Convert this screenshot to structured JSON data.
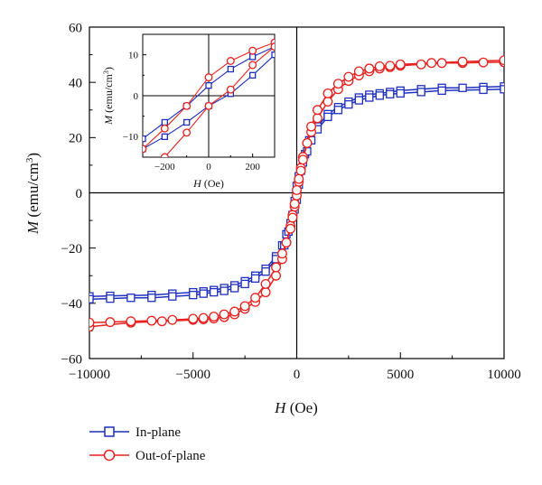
{
  "chart_data": [
    {
      "type": "line",
      "xlabel": "H (Oe)",
      "ylabel": "M (emu/cm3)",
      "xlim": [
        -10000,
        10000
      ],
      "ylim": [
        -60,
        60
      ],
      "xticks": [
        -10000,
        -5000,
        0,
        5000,
        10000
      ],
      "yticks": [
        -60,
        -40,
        -20,
        0,
        20,
        40,
        60
      ],
      "xtick_labels": [
        "−10000",
        "−5000",
        "0",
        "5000",
        "10000"
      ],
      "ytick_labels": [
        "−60",
        "−40",
        "−20",
        "0",
        "20",
        "40",
        "60"
      ],
      "legend": {
        "position": "bottom-left"
      },
      "series": [
        {
          "name": "In-plane",
          "color": "#1f2fbf",
          "marker": "square",
          "branches": [
            {
              "x": [
                -10000,
                -9000,
                -7000,
                -6000,
                -5000,
                -4500,
                -4000,
                -3500,
                -3000,
                -2500,
                -2000,
                -1500,
                -1000,
                -700,
                -500,
                -300,
                -200,
                -100,
                0,
                100,
                200,
                400,
                600,
                1000,
                1500,
                2000,
                2500,
                3000,
                3500,
                4000,
                4500,
                5000,
                6000,
                7000,
                8000,
                9000,
                10000
              ],
              "y": [
                -37.5,
                -37.3,
                -37.0,
                -36.5,
                -36.0,
                -35.7,
                -35.2,
                -34.5,
                -33.5,
                -32.0,
                -30.0,
                -27.5,
                -23.0,
                -19.0,
                -15.0,
                -11.0,
                -8.5,
                -6.0,
                -2.5,
                3.0,
                8.0,
                14.0,
                19.0,
                24.0,
                28.5,
                31.0,
                33.0,
                34.5,
                35.5,
                36.0,
                36.5,
                37.0,
                37.5,
                38.0,
                38.0,
                38.3,
                38.5
              ]
            },
            {
              "x": [
                10000,
                9000,
                7000,
                6000,
                5000,
                4500,
                4000,
                3500,
                3000,
                2500,
                2000,
                1500,
                1000,
                700,
                500,
                300,
                200,
                100,
                0,
                -100,
                -200,
                -400,
                -600,
                -1000,
                -1500,
                -2000,
                -2500,
                -3000,
                -3500,
                -4000,
                -4500,
                -5000,
                -6000,
                -7000,
                -8000,
                -9000,
                -10000
              ],
              "y": [
                37.5,
                37.3,
                37.0,
                36.5,
                36.0,
                35.7,
                35.2,
                34.5,
                33.5,
                32.0,
                30.0,
                27.5,
                23.0,
                19.0,
                15.0,
                11.0,
                8.5,
                6.0,
                2.5,
                -3.0,
                -8.0,
                -14.0,
                -19.0,
                -24.0,
                -28.5,
                -31.0,
                -33.0,
                -34.5,
                -35.5,
                -36.0,
                -36.5,
                -37.0,
                -37.5,
                -38.0,
                -38.0,
                -38.3,
                -38.5
              ]
            }
          ]
        },
        {
          "name": "Out-of-plane",
          "color": "#e8201e",
          "marker": "circle",
          "branches": [
            {
              "x": [
                -10000,
                -8000,
                -6500,
                -5000,
                -4500,
                -4000,
                -3500,
                -3000,
                -2500,
                -2000,
                -1500,
                -1000,
                -700,
                -500,
                -300,
                -200,
                -100,
                0,
                100,
                200,
                300,
                500,
                700,
                1000,
                1500,
                2000,
                2500,
                3000,
                3500,
                4000,
                4500,
                5000,
                6000,
                7000,
                8000,
                9000,
                10000
              ],
              "y": [
                -48.5,
                -47.0,
                -46.5,
                -46.0,
                -45.8,
                -45.5,
                -45.0,
                -44.0,
                -42.0,
                -39.5,
                -36.0,
                -30.0,
                -24.0,
                -18.0,
                -12.0,
                -8.0,
                -5.0,
                -1.0,
                4.0,
                9.0,
                13.0,
                18.0,
                22.0,
                27.0,
                33.0,
                37.5,
                40.5,
                42.5,
                44.0,
                45.0,
                45.5,
                46.0,
                46.5,
                47.0,
                47.0,
                47.2,
                47.3
              ]
            },
            {
              "x": [
                10000,
                8000,
                6500,
                5000,
                4500,
                4000,
                3500,
                3000,
                2500,
                2000,
                1500,
                1000,
                700,
                500,
                300,
                200,
                100,
                0,
                -100,
                -200,
                -300,
                -500,
                -700,
                -1000,
                -1500,
                -2000,
                -2500,
                -3000,
                -3500,
                -4000,
                -4500,
                -5000,
                -6000,
                -7000,
                -8000,
                -9000,
                -10000
              ],
              "y": [
                48.0,
                47.5,
                47.0,
                46.5,
                46.0,
                45.8,
                45.0,
                44.0,
                42.0,
                39.5,
                36.0,
                30.0,
                24.0,
                18.0,
                12.0,
                8.0,
                5.0,
                1.0,
                -4.0,
                -9.0,
                -13.0,
                -18.0,
                -22.0,
                -27.0,
                -33.0,
                -38.0,
                -41.0,
                -43.0,
                -44.0,
                -44.8,
                -45.3,
                -45.6,
                -46.0,
                -46.3,
                -46.5,
                -46.8,
                -47.0
              ]
            }
          ]
        }
      ]
    },
    {
      "type": "line",
      "xlabel": "H (Oe)",
      "ylabel": "M (emu/cm3)",
      "xlim": [
        -300,
        300
      ],
      "ylim": [
        -15,
        15
      ],
      "xticks": [
        -200,
        0,
        200
      ],
      "yticks": [
        -10,
        0,
        10
      ],
      "xtick_labels": [
        "−200",
        "0",
        "200"
      ],
      "ytick_labels": [
        "−10",
        "0",
        "10"
      ],
      "series": [
        {
          "name": "In-plane",
          "color": "#1f2fbf",
          "marker": "square",
          "branches": [
            {
              "x": [
                -300,
                -200,
                -100,
                0,
                100,
                200,
                300
              ],
              "y": [
                -10.5,
                -6.5,
                -2.5,
                2.5,
                6.5,
                9.5,
                12.0
              ]
            },
            {
              "x": [
                300,
                200,
                100,
                0,
                -100,
                -200,
                -300
              ],
              "y": [
                10.0,
                5.0,
                0.5,
                -2.5,
                -6.5,
                -10.0,
                -13.0
              ]
            }
          ]
        },
        {
          "name": "Out-of-plane",
          "color": "#e8201e",
          "marker": "circle",
          "branches": [
            {
              "x": [
                -300,
                -200,
                -100,
                0,
                100,
                200,
                300
              ],
              "y": [
                -13.0,
                -8.0,
                -2.5,
                4.5,
                8.5,
                11.0,
                13.0
              ]
            },
            {
              "x": [
                300,
                200,
                100,
                0,
                -100,
                -200,
                -300
              ],
              "y": [
                12.0,
                7.5,
                1.5,
                -2.5,
                -9.0,
                -15.0,
                -18.0
              ]
            }
          ]
        }
      ]
    }
  ]
}
